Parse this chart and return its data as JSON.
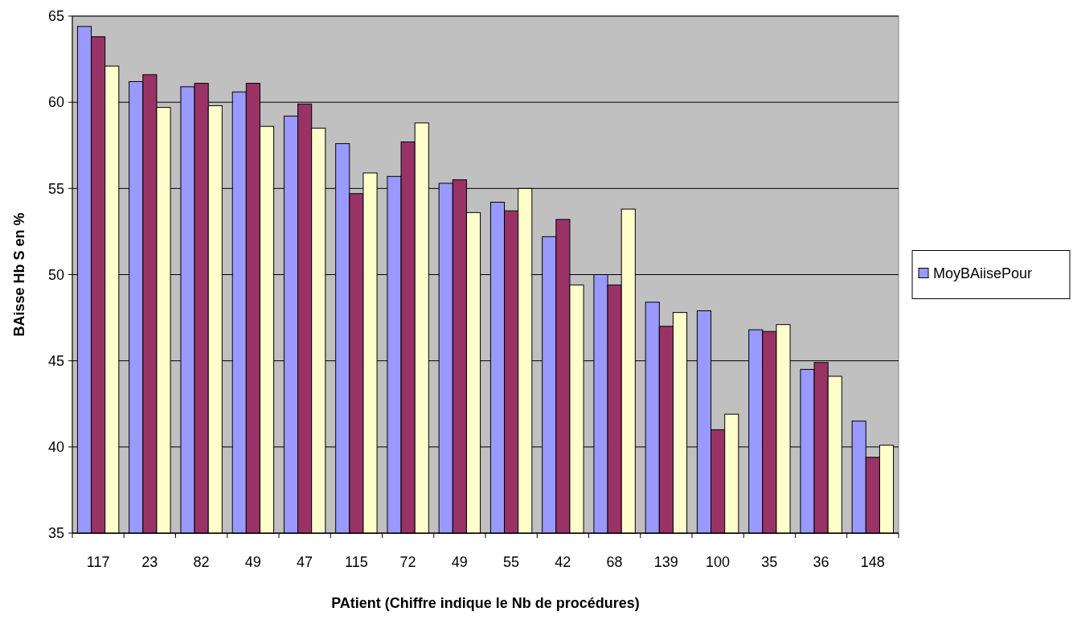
{
  "chart_data": {
    "type": "bar",
    "xlabel": "PAtient (Chiffre indique le Nb de procédures)",
    "ylabel": "BAisse Hb S en %",
    "categories": [
      "117",
      "23",
      "82",
      "49",
      "47",
      "115",
      "72",
      "49",
      "55",
      "42",
      "68",
      "139",
      "100",
      "35",
      "36",
      "148"
    ],
    "series": [
      {
        "name": "MoyBAiisePour",
        "color": "#9999ff",
        "values": [
          64.4,
          61.2,
          60.9,
          60.6,
          59.2,
          57.6,
          55.7,
          55.3,
          54.2,
          52.2,
          50.0,
          48.4,
          47.9,
          46.8,
          44.5,
          41.5
        ]
      },
      {
        "color": "#993366",
        "values": [
          63.8,
          61.6,
          61.1,
          61.1,
          59.9,
          54.7,
          57.7,
          55.5,
          53.7,
          53.2,
          49.4,
          47.0,
          41.0,
          46.7,
          44.9,
          39.4
        ]
      },
      {
        "color": "#ffffcc",
        "values": [
          62.1,
          59.7,
          59.8,
          58.6,
          58.5,
          55.9,
          58.8,
          53.6,
          55.0,
          49.4,
          53.8,
          47.8,
          41.9,
          47.1,
          44.1,
          40.1
        ]
      }
    ],
    "ylim": [
      35,
      65
    ],
    "yticks": [
      35,
      40,
      45,
      50,
      55,
      60,
      65
    ],
    "grid": "y",
    "legend": "right"
  }
}
